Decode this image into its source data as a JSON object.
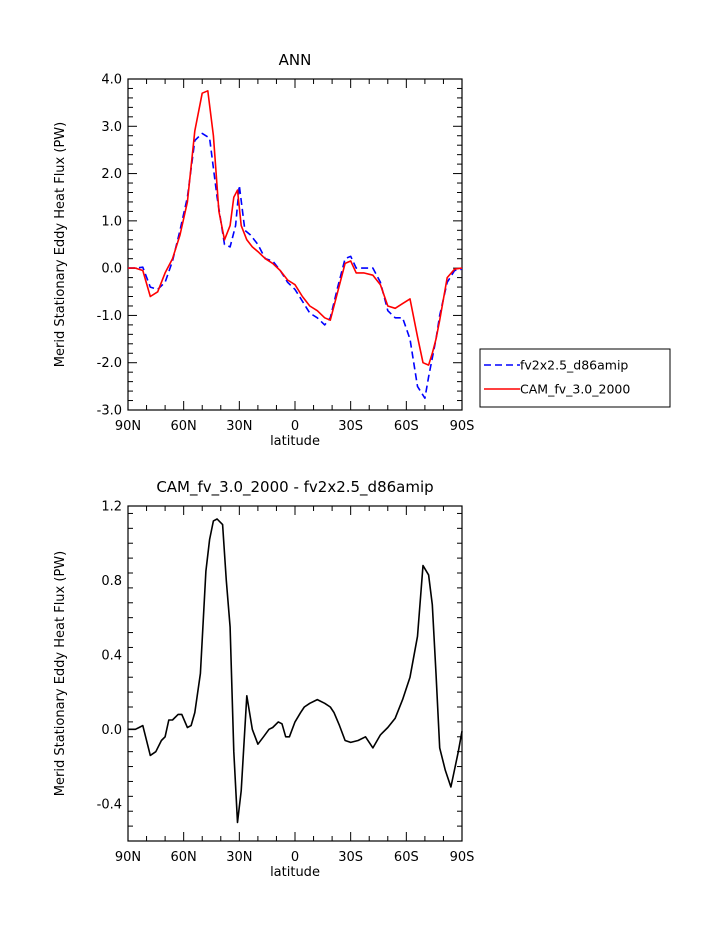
{
  "chart_data": [
    {
      "type": "line",
      "title": "ANN",
      "xlabel": "latitude",
      "ylabel": "Merid Stationary Eddy Heat Flux (PW)",
      "xlim": [
        90,
        -90
      ],
      "ylim": [
        -3.0,
        4.0
      ],
      "x_ticks": [
        90,
        60,
        30,
        0,
        -30,
        -60,
        -90
      ],
      "x_tick_labels": [
        "90N",
        "60N",
        "30N",
        "0",
        "30S",
        "60S",
        "90S"
      ],
      "y_ticks": [
        -3.0,
        -2.0,
        -1.0,
        0.0,
        1.0,
        2.0,
        3.0,
        4.0
      ],
      "y_tick_labels": [
        "-3.0",
        "-2.0",
        "-1.0",
        "0.0",
        "1.0",
        "2.0",
        "3.0",
        "4.0"
      ],
      "legend": "right",
      "series": [
        {
          "name": "fv2x2.5_d86amip",
          "color": "#0000ff",
          "dash": "dashed",
          "x": [
            90,
            86,
            82,
            78,
            74,
            70,
            66,
            62,
            58,
            54,
            50,
            46,
            42,
            38,
            35,
            32,
            30,
            27,
            24,
            20,
            16,
            12,
            8,
            4,
            0,
            -4,
            -8,
            -12,
            -16,
            -19,
            -23,
            -27,
            -30,
            -33,
            -37,
            -42,
            -46,
            -50,
            -54,
            -58,
            -62,
            -66,
            -70,
            -72,
            -74,
            -76,
            -78,
            -82,
            -86,
            -90
          ],
          "y": [
            0.0,
            0.0,
            0.02,
            -0.4,
            -0.45,
            -0.3,
            0.15,
            0.8,
            1.5,
            2.7,
            2.85,
            2.75,
            1.5,
            0.5,
            0.45,
            0.9,
            1.75,
            0.8,
            0.7,
            0.5,
            0.2,
            0.15,
            -0.05,
            -0.3,
            -0.45,
            -0.7,
            -0.95,
            -1.05,
            -1.2,
            -1.05,
            -0.4,
            0.2,
            0.25,
            0.0,
            0.0,
            0.0,
            -0.3,
            -0.9,
            -1.05,
            -1.05,
            -1.5,
            -2.5,
            -2.75,
            -2.3,
            -1.9,
            -1.5,
            -1.0,
            -0.3,
            -0.05,
            -0.02
          ]
        },
        {
          "name": "CAM_fv_3.0_2000",
          "color": "#ff0000",
          "dash": "solid",
          "x": [
            90,
            86,
            82,
            78,
            74,
            70,
            66,
            62,
            58,
            54,
            50,
            47,
            44,
            41,
            38,
            35,
            33,
            31,
            29,
            26,
            23,
            20,
            16,
            12,
            8,
            4,
            0,
            -4,
            -8,
            -12,
            -16,
            -19,
            -23,
            -27,
            -30,
            -33,
            -37,
            -42,
            -46,
            -50,
            -54,
            -58,
            -62,
            -66,
            -69,
            -72,
            -74,
            -76,
            -78,
            -82,
            -86,
            -90
          ],
          "y": [
            0.0,
            0.0,
            -0.05,
            -0.6,
            -0.5,
            -0.1,
            0.2,
            0.7,
            1.4,
            2.9,
            3.7,
            3.75,
            2.8,
            1.2,
            0.6,
            0.9,
            1.5,
            1.65,
            0.9,
            0.6,
            0.45,
            0.35,
            0.2,
            0.1,
            -0.05,
            -0.25,
            -0.35,
            -0.6,
            -0.8,
            -0.9,
            -1.05,
            -1.1,
            -0.5,
            0.1,
            0.15,
            -0.1,
            -0.1,
            -0.15,
            -0.35,
            -0.8,
            -0.85,
            -0.75,
            -0.65,
            -1.45,
            -2.0,
            -2.05,
            -1.8,
            -1.5,
            -1.1,
            -0.2,
            -0.02,
            0.0
          ]
        }
      ]
    },
    {
      "type": "line",
      "title": "CAM_fv_3.0_2000 - fv2x2.5_d86amip",
      "xlabel": "latitude",
      "ylabel": "Merid Stationary Eddy Heat Flux (PW)",
      "xlim": [
        90,
        -90
      ],
      "ylim": [
        -0.6,
        1.2
      ],
      "x_ticks": [
        90,
        60,
        30,
        0,
        -30,
        -60,
        -90
      ],
      "x_tick_labels": [
        "90N",
        "60N",
        "30N",
        "0",
        "30S",
        "60S",
        "90S"
      ],
      "y_ticks": [
        -0.4,
        0.0,
        0.4,
        0.8,
        1.2
      ],
      "y_tick_labels": [
        "-0.4",
        "0.0",
        "0.4",
        "0.8",
        "1.2"
      ],
      "series": [
        {
          "color": "#000000",
          "dash": "solid",
          "x": [
            90,
            86,
            84,
            82,
            78,
            75,
            72,
            70,
            68,
            66,
            63,
            61,
            58,
            56,
            54,
            51,
            48,
            46,
            44,
            42,
            39,
            37,
            35,
            33,
            31,
            29,
            26,
            23,
            20,
            17,
            14,
            12,
            9,
            7,
            5,
            3,
            0,
            -3,
            -5,
            -8,
            -12,
            -16,
            -19,
            -21,
            -24,
            -27,
            -30,
            -34,
            -38,
            -42,
            -46,
            -50,
            -54,
            -58,
            -62,
            -66,
            -69,
            -72,
            -74,
            -76,
            -78,
            -81,
            -84,
            -88,
            -90
          ],
          "y": [
            0.0,
            0.0,
            0.01,
            0.02,
            -0.14,
            -0.12,
            -0.06,
            -0.04,
            0.05,
            0.05,
            0.08,
            0.08,
            0.01,
            0.02,
            0.09,
            0.3,
            0.85,
            1.02,
            1.12,
            1.13,
            1.1,
            0.8,
            0.55,
            -0.12,
            -0.5,
            -0.33,
            0.18,
            0.0,
            -0.08,
            -0.04,
            0.0,
            0.01,
            0.04,
            0.03,
            -0.04,
            -0.04,
            0.04,
            0.09,
            0.12,
            0.14,
            0.16,
            0.14,
            0.12,
            0.09,
            0.02,
            -0.06,
            -0.07,
            -0.06,
            -0.04,
            -0.1,
            -0.03,
            0.01,
            0.06,
            0.16,
            0.28,
            0.5,
            0.88,
            0.83,
            0.67,
            0.3,
            -0.1,
            -0.22,
            -0.31,
            -0.12,
            -0.01
          ]
        }
      ]
    }
  ]
}
